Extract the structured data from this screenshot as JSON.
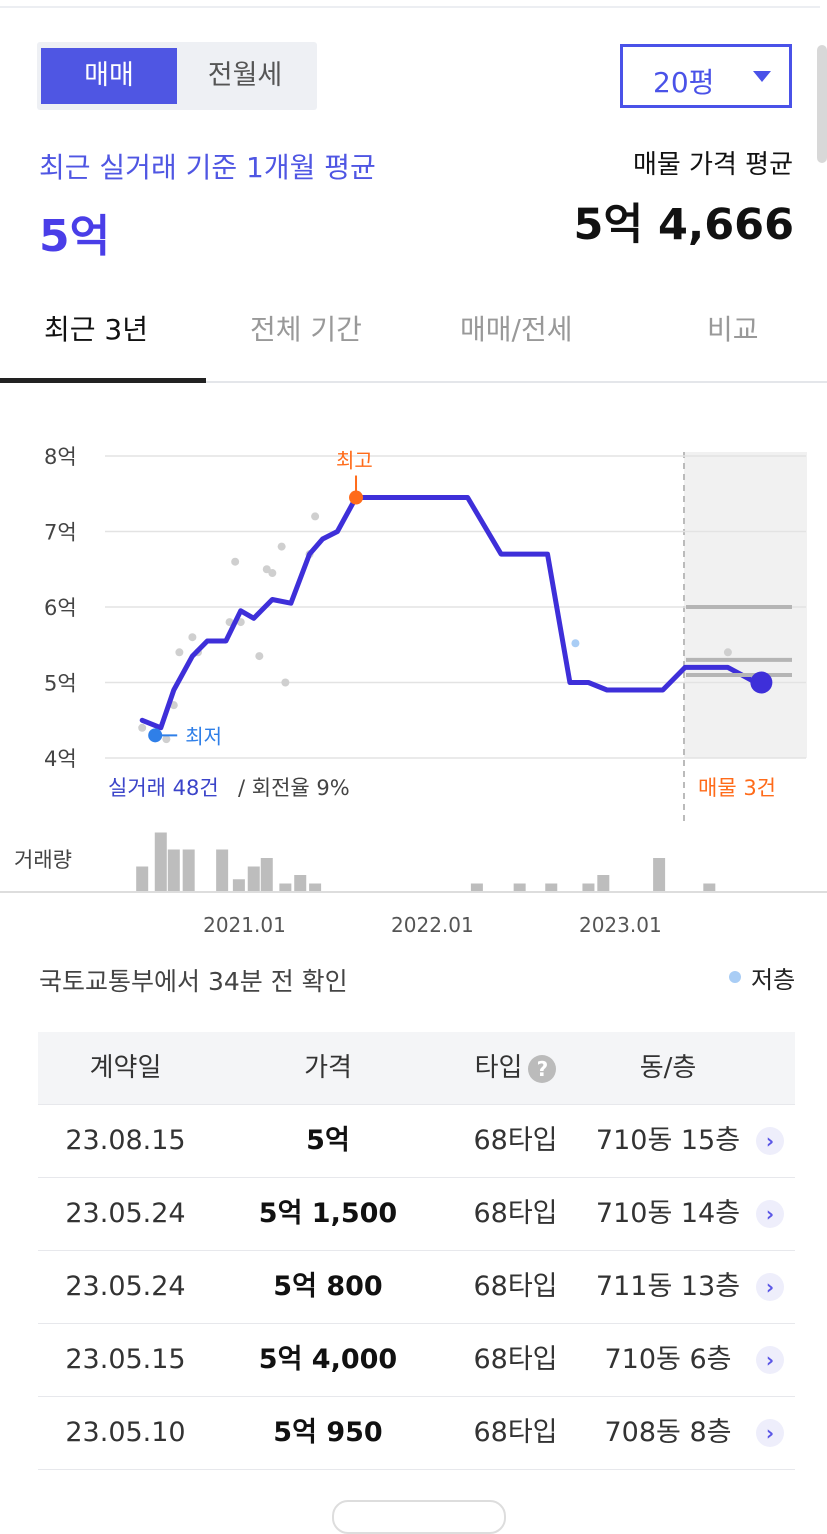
{
  "filters": {
    "trade_types": [
      "매매",
      "전월세"
    ],
    "selected_trade_type": "매매",
    "area": "20평"
  },
  "summary": {
    "subtitle": "최근 실거래 기준 1개월 평균",
    "average": "5억",
    "listing_label": "매물 가격 평균",
    "listing_value": "5억 4,666"
  },
  "tabs": [
    "최근 3년",
    "전체 기간",
    "매매/전세",
    "비교"
  ],
  "active_tab": "최근 3년",
  "colors": {
    "accent": "#4f56e3",
    "line": "#3e2fd9",
    "high": "#ff6b1a",
    "low": "#2f7fe8",
    "lowfloor": "#a9cdf5"
  },
  "chart_data": {
    "type": "line",
    "y_ticks": [
      "8억",
      "7억",
      "6억",
      "5억",
      "4억"
    ],
    "x_ticks": [
      "2021.01",
      "2022.01",
      "2023.01"
    ],
    "ylim": [
      4,
      8
    ],
    "xlim": [
      2020.42,
      2024.05
    ],
    "line": {
      "x": [
        2020.45,
        2020.55,
        2020.62,
        2020.72,
        2020.8,
        2020.9,
        2020.98,
        2021.05,
        2021.15,
        2021.25,
        2021.35,
        2021.42,
        2021.5,
        2021.6,
        2021.75,
        2021.85,
        2022.2,
        2022.38,
        2022.48,
        2022.63,
        2022.75,
        2022.85,
        2022.95,
        2023.1,
        2023.25,
        2023.37,
        2023.47,
        2023.6,
        2023.75,
        2023.78
      ],
      "y": [
        4.5,
        4.4,
        4.9,
        5.35,
        5.55,
        5.55,
        5.95,
        5.85,
        6.1,
        6.05,
        6.7,
        6.9,
        7.0,
        7.45,
        7.45,
        7.45,
        7.45,
        6.7,
        6.7,
        6.7,
        5.0,
        5.0,
        4.9,
        4.9,
        4.9,
        5.2,
        5.2,
        5.2,
        5.0,
        5.0
      ]
    },
    "points": [
      {
        "x": 2020.45,
        "y": 4.4
      },
      {
        "x": 2020.58,
        "y": 4.25
      },
      {
        "x": 2020.62,
        "y": 4.7
      },
      {
        "x": 2020.65,
        "y": 5.4
      },
      {
        "x": 2020.72,
        "y": 5.6
      },
      {
        "x": 2020.75,
        "y": 5.4
      },
      {
        "x": 2020.92,
        "y": 5.8
      },
      {
        "x": 2020.95,
        "y": 6.6
      },
      {
        "x": 2020.98,
        "y": 5.8
      },
      {
        "x": 2021.08,
        "y": 5.35
      },
      {
        "x": 2021.12,
        "y": 6.5
      },
      {
        "x": 2021.15,
        "y": 6.45
      },
      {
        "x": 2021.2,
        "y": 6.8
      },
      {
        "x": 2021.22,
        "y": 5.0
      },
      {
        "x": 2021.35,
        "y": 6.7
      },
      {
        "x": 2021.38,
        "y": 7.2
      },
      {
        "x": 2022.78,
        "y": 5.52
      },
      {
        "x": 2023.6,
        "y": 5.4
      }
    ],
    "high": {
      "x": 2021.6,
      "y": 7.45,
      "label": "최고"
    },
    "low": {
      "x": 2020.52,
      "y": 4.3,
      "label": "최저"
    },
    "current": {
      "x": 2023.78,
      "y": 5.0
    },
    "listings": [
      6.0,
      5.3,
      5.1
    ],
    "trade_count_label": "실거래 48건",
    "turnover_label": "/ 회전율 9%",
    "listing_count_label": "매물 3건",
    "volume_label": "거래량",
    "volume": [
      {
        "x": 2020.45,
        "v": 3
      },
      {
        "x": 2020.55,
        "v": 7
      },
      {
        "x": 2020.62,
        "v": 5
      },
      {
        "x": 2020.7,
        "v": 5
      },
      {
        "x": 2020.88,
        "v": 5
      },
      {
        "x": 2020.97,
        "v": 1.5
      },
      {
        "x": 2021.05,
        "v": 3
      },
      {
        "x": 2021.12,
        "v": 4
      },
      {
        "x": 2021.22,
        "v": 1
      },
      {
        "x": 2021.3,
        "v": 2
      },
      {
        "x": 2021.38,
        "v": 1
      },
      {
        "x": 2022.25,
        "v": 1
      },
      {
        "x": 2022.48,
        "v": 1
      },
      {
        "x": 2022.65,
        "v": 1
      },
      {
        "x": 2022.85,
        "v": 1
      },
      {
        "x": 2022.93,
        "v": 2
      },
      {
        "x": 2023.23,
        "v": 4
      },
      {
        "x": 2023.5,
        "v": 1
      }
    ]
  },
  "source": "국토교통부에서 34분 전 확인",
  "legend": "저층",
  "table": {
    "headers": [
      "계약일",
      "가격",
      "타입",
      "동/층"
    ],
    "help_icon": "question-icon",
    "rows": [
      {
        "date": "23.08.15",
        "price": "5억",
        "type": "68타입",
        "unit": "710동 15층"
      },
      {
        "date": "23.05.24",
        "price": "5억 1,500",
        "type": "68타입",
        "unit": "710동 14층"
      },
      {
        "date": "23.05.24",
        "price": "5억 800",
        "type": "68타입",
        "unit": "711동 13층"
      },
      {
        "date": "23.05.15",
        "price": "5억 4,000",
        "type": "68타입",
        "unit": "710동 6층"
      },
      {
        "date": "23.05.10",
        "price": "5억 950",
        "type": "68타입",
        "unit": "708동 8층"
      }
    ]
  }
}
